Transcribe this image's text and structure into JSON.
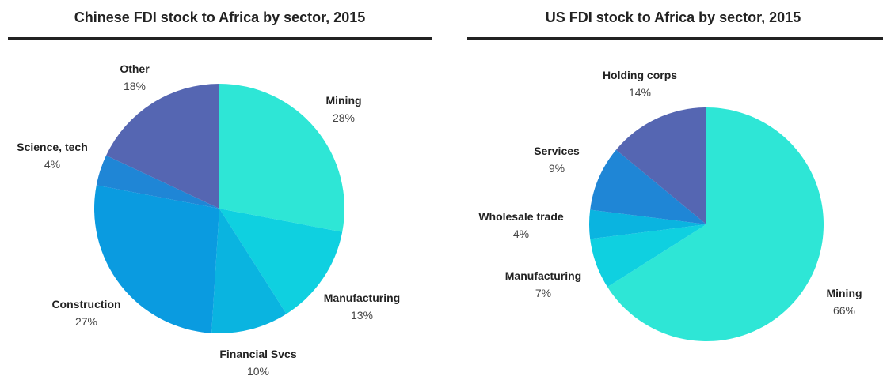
{
  "chart_data": [
    {
      "type": "pie",
      "title": "Chinese FDI stock to Africa by sector, 2015",
      "slices": [
        {
          "name": "Mining",
          "value": 28,
          "label": "28%",
          "color": "#2ee6d6"
        },
        {
          "name": "Manufacturing",
          "value": 13,
          "label": "13%",
          "color": "#0fd0e0"
        },
        {
          "name": "Financial Svcs",
          "value": 10,
          "label": "10%",
          "color": "#0ab4e0"
        },
        {
          "name": "Construction",
          "value": 27,
          "label": "27%",
          "color": "#0a9be0"
        },
        {
          "name": "Science, tech",
          "value": 4,
          "label": "4%",
          "color": "#1f86d6"
        },
        {
          "name": "Other",
          "value": 18,
          "label": "18%",
          "color": "#5566b2"
        }
      ]
    },
    {
      "type": "pie",
      "title": "US FDI stock to Africa by sector, 2015",
      "slices": [
        {
          "name": "Mining",
          "value": 66,
          "label": "66%",
          "color": "#2ee6d6"
        },
        {
          "name": "Manufacturing",
          "value": 7,
          "label": "7%",
          "color": "#0fd0e0"
        },
        {
          "name": "Wholesale trade",
          "value": 4,
          "label": "4%",
          "color": "#0ab4e0"
        },
        {
          "name": "Services",
          "value": 9,
          "label": "9%",
          "color": "#1f86d6"
        },
        {
          "name": "Holding corps",
          "value": 14,
          "label": "14%",
          "color": "#5566b2"
        }
      ]
    }
  ]
}
